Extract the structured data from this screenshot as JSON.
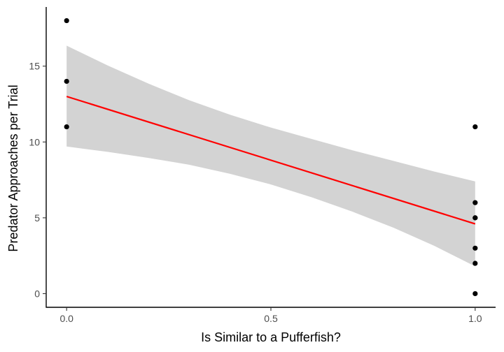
{
  "chart_data": {
    "type": "scatter",
    "title": "",
    "xlabel": "Is Similar to a Pufferfish?",
    "ylabel": "Predator Approaches per Trial",
    "xlim": [
      -0.05,
      1.05
    ],
    "ylim": [
      -0.9,
      18.9
    ],
    "x_ticks": [
      0.0,
      0.5,
      1.0
    ],
    "x_tick_labels": [
      "0.0",
      "0.5",
      "1.0"
    ],
    "y_ticks": [
      0,
      5,
      10,
      15
    ],
    "y_tick_labels": [
      "0",
      "5",
      "10",
      "15"
    ],
    "grid": false,
    "legend": "none",
    "points": [
      {
        "x": 0,
        "y": 18
      },
      {
        "x": 0,
        "y": 14
      },
      {
        "x": 0,
        "y": 11
      },
      {
        "x": 1,
        "y": 11
      },
      {
        "x": 1,
        "y": 6
      },
      {
        "x": 1,
        "y": 5
      },
      {
        "x": 1,
        "y": 5
      },
      {
        "x": 1,
        "y": 3
      },
      {
        "x": 1,
        "y": 2
      },
      {
        "x": 1,
        "y": 0
      }
    ],
    "fit_line": {
      "x": [
        0,
        1
      ],
      "y": [
        13.0,
        4.6
      ]
    },
    "confidence_band": {
      "x": [
        0,
        0.1,
        0.2,
        0.3,
        0.4,
        0.5,
        0.6,
        0.7,
        0.8,
        0.9,
        1.0
      ],
      "lower": [
        9.7,
        9.35,
        8.95,
        8.5,
        7.9,
        7.2,
        6.35,
        5.4,
        4.35,
        3.15,
        1.8
      ],
      "upper": [
        16.35,
        15.05,
        13.85,
        12.75,
        11.8,
        10.95,
        10.2,
        9.45,
        8.75,
        8.05,
        7.4
      ]
    },
    "colors": {
      "points": "#000000",
      "fit_line": "#ff0000",
      "band": "#d3d3d3",
      "axis": "#000000"
    }
  }
}
